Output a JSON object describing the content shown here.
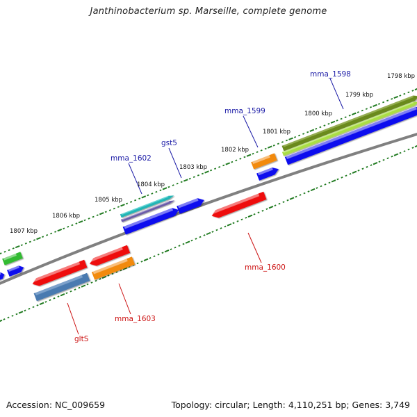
{
  "title": "Janthinobacterium sp. Marseille, complete genome",
  "footer": {
    "accession": "Accession: NC_009659",
    "info": "Topology: circular; Length: 4,110,251 bp; Genes: 3,749"
  },
  "colors": {
    "backbone": "#808080",
    "ticks": "#1f7a1f",
    "forward_label": "#1a1aa6",
    "reverse_label": "#cc1111",
    "red": "#ee1111",
    "blue": "#1111ee",
    "orange": "#f28a10",
    "green": "#33bb33",
    "olive": "#6a8a1e",
    "lime": "#aadd44",
    "teal": "#22b5b5",
    "purple": "#6a5aa8",
    "steel": "#4a7ab0"
  },
  "scale": {
    "tick_labels": [
      "1798 kbp",
      "1799 kbp",
      "1800 kbp",
      "1801 kbp",
      "1802 kbp",
      "1803 kbp",
      "1804 kbp",
      "1805 kbp",
      "1806 kbp",
      "1807 kbp"
    ]
  },
  "genes": {
    "labels": [
      "mma_1598",
      "mma_1599",
      "gst5",
      "mma_1602",
      "mma_1600",
      "mma_1603",
      "gltS"
    ]
  }
}
